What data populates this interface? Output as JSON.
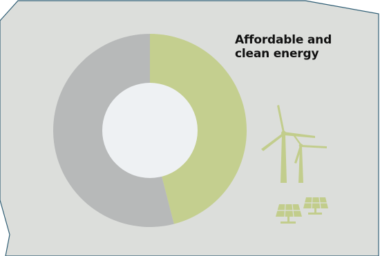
{
  "colors": {
    "panel_fill": "#dcdedb",
    "panel_stroke": "#2e5d74",
    "accent_green": "#c4cf8f",
    "neutral_gray": "#b7b9b9",
    "hole": "#eef1f3",
    "icon_green": "#c2cd8c"
  },
  "chart_data": {
    "type": "pie",
    "title_lines": [
      "Affordable and",
      "clean energy"
    ],
    "donut": true,
    "slices": [
      {
        "label": "",
        "value": 46,
        "color": "#c4cf8f"
      },
      {
        "label": "",
        "value": 54,
        "color": "#b7b9b9"
      }
    ],
    "start_angle_deg": 0,
    "legend": "none"
  },
  "icons": [
    "wind-turbine-icon",
    "solar-panel-icon"
  ]
}
